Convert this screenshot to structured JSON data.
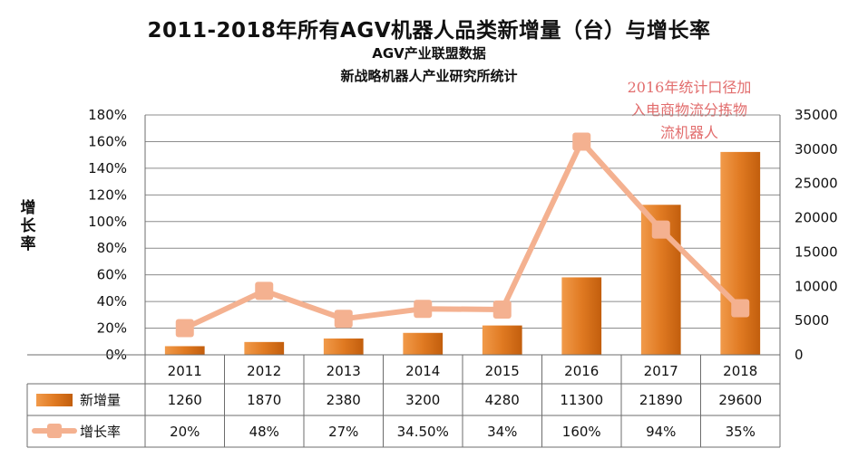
{
  "chart_data": {
    "type": "bar+line",
    "title": "2011-2018年所有AGV机器人品类新增量（台）与增长率",
    "subtitle_1": "AGV产业联盟数据",
    "subtitle_2": "新战略机器人产业研究所统计",
    "annotation": [
      "2016年统计口径加",
      "入电商物流分拣物",
      "流机器人"
    ],
    "ylabel_left": "增长率",
    "categories": [
      "2011",
      "2012",
      "2013",
      "2014",
      "2015",
      "2016",
      "2017",
      "2018"
    ],
    "series": [
      {
        "name": "新增量",
        "kind": "bar",
        "axis": "right",
        "values": [
          1260,
          1870,
          2380,
          3200,
          4280,
          11300,
          21890,
          29600
        ],
        "labels": [
          "1260",
          "1870",
          "2380",
          "3200",
          "4280",
          "11300",
          "21890",
          "29600"
        ]
      },
      {
        "name": "增长率",
        "kind": "line",
        "axis": "left",
        "values": [
          20,
          48,
          27,
          34.5,
          34,
          160,
          94,
          35
        ],
        "labels": [
          "20%",
          "48%",
          "27%",
          "34.50%",
          "34%",
          "160%",
          "94%",
          "35%"
        ]
      }
    ],
    "ylim_left": [
      0,
      180
    ],
    "yticks_left": [
      "0%",
      "20%",
      "40%",
      "60%",
      "80%",
      "100%",
      "120%",
      "140%",
      "160%",
      "180%"
    ],
    "ylim_right": [
      0,
      35000
    ],
    "yticks_right": [
      "0",
      "5000",
      "10000",
      "15000",
      "20000",
      "25000",
      "30000",
      "35000"
    ],
    "grid": true,
    "legend": "data-table-bottom",
    "colors": {
      "bar": "#e07a22",
      "bar_dark": "#c25e0d",
      "line": "#f4b190",
      "annotation": "#e26d6d"
    }
  }
}
